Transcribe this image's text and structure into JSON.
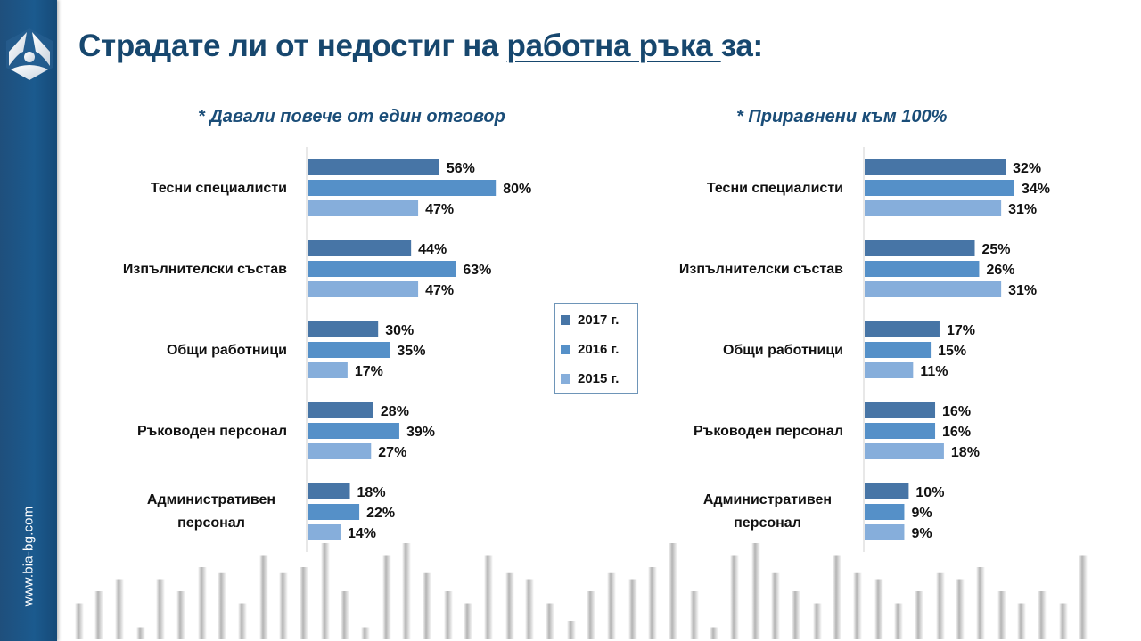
{
  "header": {
    "title_part1": "Страдате ли от недостиг на ",
    "title_underlined": "работна ръка ",
    "title_part2": "за:"
  },
  "sidebar": {
    "logo_icon": "bia-logo-icon",
    "url": "www.bia-bg.com",
    "color": "#1b5a8e"
  },
  "legend": [
    {
      "label": "2017 г.",
      "color": "#4775a6"
    },
    {
      "label": "2016 г.",
      "color": "#5590c8"
    },
    {
      "label": "2015 г.",
      "color": "#86aedb"
    }
  ],
  "chart_data": [
    {
      "type": "bar",
      "orientation": "horizontal",
      "title": "* Давали повече от един отговор",
      "categories": [
        "Тесни специалисти",
        "Изпълнителски състав",
        "Общи работници",
        "Ръководен персонал",
        "Административен персонал"
      ],
      "category_lines": [
        [
          "Тесни специалисти"
        ],
        [
          "Изпълнителски състав"
        ],
        [
          "Общи работници"
        ],
        [
          "Ръководен персонал"
        ],
        [
          "Административен",
          "персонал"
        ]
      ],
      "series": [
        {
          "name": "2017 г.",
          "values": [
            56,
            44,
            30,
            28,
            18
          ]
        },
        {
          "name": "2016 г.",
          "values": [
            80,
            63,
            35,
            39,
            22
          ]
        },
        {
          "name": "2015 г.",
          "values": [
            47,
            47,
            17,
            27,
            14
          ]
        }
      ],
      "value_suffix": "%",
      "xlim": [
        0,
        100
      ],
      "grid": false,
      "legend": "right"
    },
    {
      "type": "bar",
      "orientation": "horizontal",
      "title": "* Приравнени към 100%",
      "categories": [
        "Тесни специалисти",
        "Изпълнителски състав",
        "Общи работници",
        "Ръководен персонал",
        "Административен персонал"
      ],
      "category_lines": [
        [
          "Тесни специалисти"
        ],
        [
          "Изпълнителски състав"
        ],
        [
          "Общи работници"
        ],
        [
          "Ръководен персонал"
        ],
        [
          "Административен",
          "персонал"
        ]
      ],
      "series": [
        {
          "name": "2017 г.",
          "values": [
            32,
            25,
            17,
            16,
            10
          ]
        },
        {
          "name": "2016 г.",
          "values": [
            34,
            26,
            15,
            16,
            9
          ]
        },
        {
          "name": "2015 г.",
          "values": [
            31,
            31,
            11,
            18,
            9
          ]
        }
      ],
      "value_suffix": "%",
      "xlim": [
        0,
        50
      ],
      "grid": false,
      "legend": "left"
    }
  ]
}
